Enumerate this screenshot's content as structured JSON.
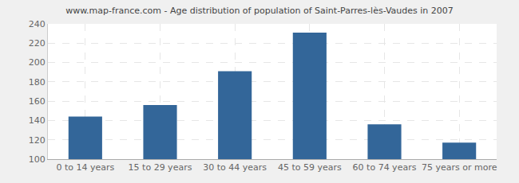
{
  "chart_data": {
    "type": "bar",
    "title": "www.map-france.com - Age distribution of population of Saint-Parres-lès-Vaudes in 2007",
    "categories": [
      "0 to 14 years",
      "15 to 29 years",
      "30 to 44 years",
      "45 to 59 years",
      "60 to 74 years",
      "75 years or more"
    ],
    "values": [
      144,
      156,
      191,
      231,
      136,
      117
    ],
    "color": "#336699",
    "ylim": [
      100,
      240
    ],
    "yticks": [
      100,
      120,
      140,
      160,
      180,
      200,
      220,
      240
    ],
    "grid": true
  }
}
